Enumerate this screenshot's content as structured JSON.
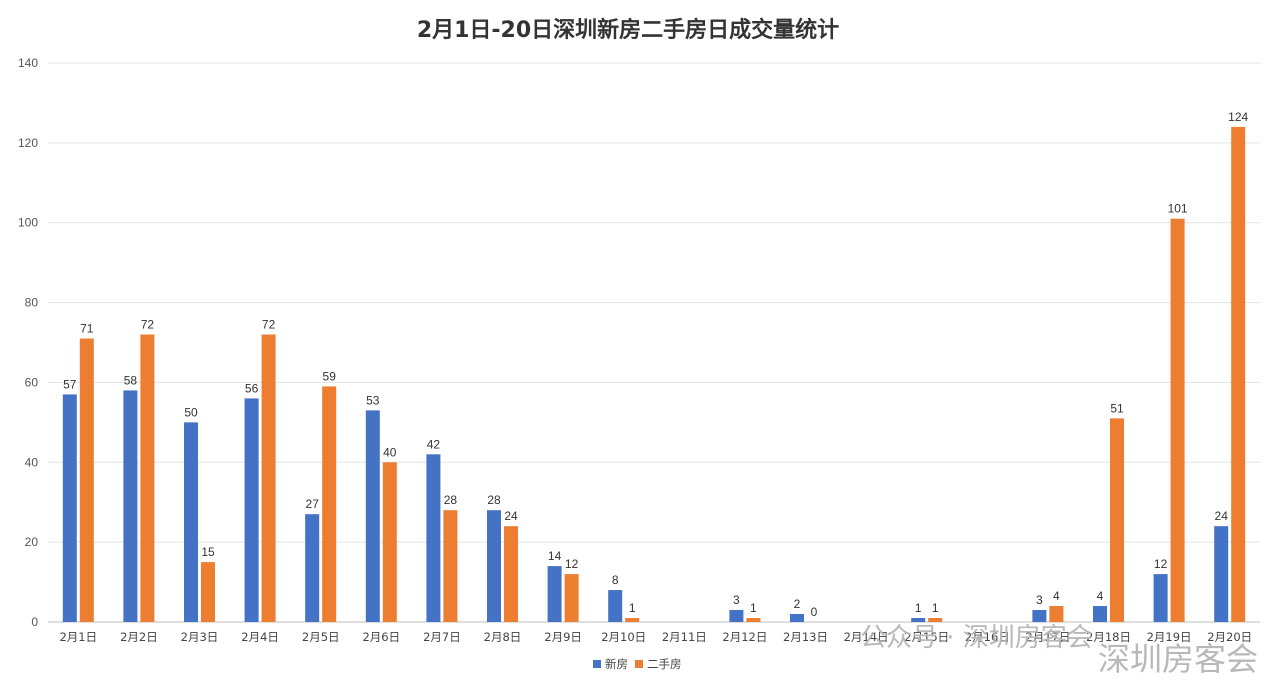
{
  "chart_data": {
    "type": "bar",
    "title": "2月1日-20日深圳新房二手房日成交量统计",
    "categories": [
      "2月1日",
      "2月2日",
      "2月3日",
      "2月4日",
      "2月5日",
      "2月6日",
      "2月7日",
      "2月8日",
      "2月9日",
      "2月10日",
      "2月11日",
      "2月12日",
      "2月13日",
      "2月14日",
      "2月15日",
      "2月16日",
      "2月17日",
      "2月18日",
      "2月19日",
      "2月20日"
    ],
    "series": [
      {
        "name": "新房",
        "color": "#4472C4",
        "values": [
          57,
          58,
          50,
          56,
          27,
          53,
          42,
          28,
          14,
          8,
          null,
          3,
          2,
          null,
          1,
          null,
          3,
          4,
          12,
          24
        ]
      },
      {
        "name": "二手房",
        "color": "#ED7D31",
        "values": [
          71,
          72,
          15,
          72,
          59,
          40,
          28,
          24,
          12,
          1,
          null,
          1,
          0,
          null,
          1,
          null,
          4,
          51,
          101,
          124
        ]
      }
    ],
    "yticks": [
      0,
      20,
      40,
      60,
      80,
      100,
      120,
      140
    ],
    "ylim": [
      0,
      140
    ],
    "grid": true,
    "legend_position": "bottom"
  },
  "watermark": {
    "text1": "公众号 · 深圳房客会",
    "text2": "深圳房客会"
  }
}
